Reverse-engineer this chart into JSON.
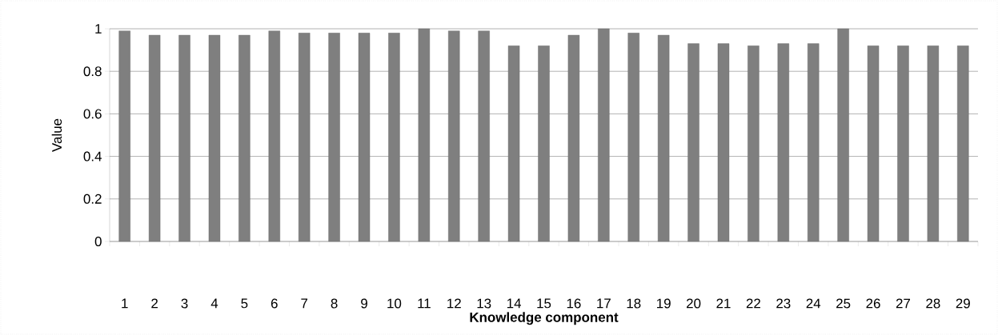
{
  "chart_data": {
    "type": "bar",
    "xlabel": "Knowledge component",
    "ylabel": "Value",
    "categories": [
      "1",
      "2",
      "3",
      "4",
      "5",
      "6",
      "7",
      "8",
      "9",
      "10",
      "11",
      "12",
      "13",
      "14",
      "15",
      "16",
      "17",
      "18",
      "19",
      "20",
      "21",
      "22",
      "23",
      "24",
      "25",
      "26",
      "27",
      "28",
      "29"
    ],
    "values": [
      0.99,
      0.97,
      0.97,
      0.97,
      0.97,
      0.99,
      0.98,
      0.98,
      0.98,
      0.98,
      1,
      0.99,
      0.99,
      0.92,
      0.92,
      0.97,
      1,
      0.98,
      0.97,
      0.93,
      0.93,
      0.92,
      0.93,
      0.93,
      1,
      0.92,
      0.92,
      0.92,
      0.92
    ],
    "color": "#7f7f7f",
    "ylim": [
      0,
      1
    ],
    "yticks": [
      0,
      0.2,
      0.4,
      0.6,
      0.8,
      1
    ],
    "grid": "y"
  }
}
